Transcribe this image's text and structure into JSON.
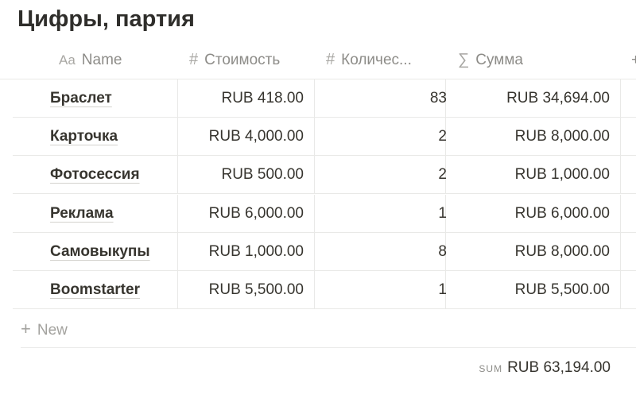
{
  "title": "Цифры, партия",
  "columns": [
    {
      "icon": "Aa",
      "label": "Name"
    },
    {
      "icon": "#",
      "label": "Стоимость"
    },
    {
      "icon": "#",
      "label": "Количес..."
    },
    {
      "icon": "∑",
      "label": "Сумма"
    }
  ],
  "add_column": "+",
  "rows": [
    {
      "name": "Браслет",
      "cost": "RUB 418.00",
      "qty": "83",
      "sum": "RUB 34,694.00"
    },
    {
      "name": "Карточка",
      "cost": "RUB 4,000.00",
      "qty": "2",
      "sum": "RUB 8,000.00"
    },
    {
      "name": "Фотосессия",
      "cost": "RUB 500.00",
      "qty": "2",
      "sum": "RUB 1,000.00"
    },
    {
      "name": "Реклама",
      "cost": "RUB 6,000.00",
      "qty": "1",
      "sum": "RUB 6,000.00"
    },
    {
      "name": "Самовыкупы",
      "cost": "RUB 1,000.00",
      "qty": "8",
      "sum": "RUB 8,000.00"
    },
    {
      "name": "Boomstarter",
      "cost": "RUB 5,500.00",
      "qty": "1",
      "sum": "RUB 5,500.00"
    }
  ],
  "new_label": "New",
  "new_icon": "+",
  "footer": {
    "label": "SUM",
    "value": "RUB 63,194.00"
  }
}
